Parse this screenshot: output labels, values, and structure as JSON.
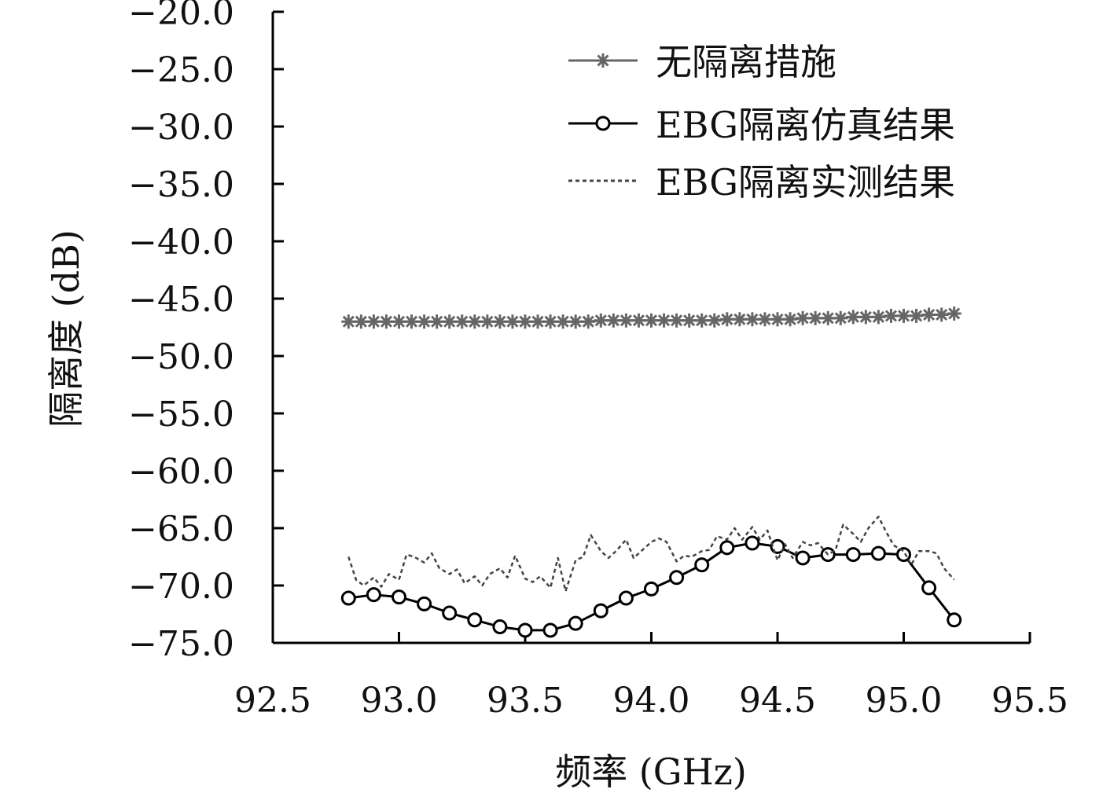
{
  "chart_data": {
    "type": "line",
    "title": "",
    "xlabel": "频率 (GHz)",
    "ylabel": "隔离度 (dB)",
    "xlim": [
      92.5,
      95.5
    ],
    "ylim": [
      -75.0,
      -20.0
    ],
    "x_ticks": [
      "92.5",
      "93.0",
      "93.5",
      "94.0",
      "94.5",
      "95.0",
      "95.5"
    ],
    "y_ticks": [
      "−20.0",
      "−25.0",
      "−30.0",
      "−35.0",
      "−40.0",
      "−45.0",
      "−50.0",
      "−55.0",
      "−60.0",
      "−65.0",
      "−70.0",
      "−75.0"
    ],
    "grid": false,
    "legend_position": "top-right",
    "series": [
      {
        "name": "无隔离措施",
        "style": "solid-star",
        "color": "#666666",
        "x": [
          92.8,
          92.85,
          92.9,
          92.95,
          93.0,
          93.05,
          93.1,
          93.15,
          93.2,
          93.25,
          93.3,
          93.35,
          93.4,
          93.45,
          93.5,
          93.55,
          93.6,
          93.65,
          93.7,
          93.75,
          93.8,
          93.85,
          93.9,
          93.95,
          94.0,
          94.05,
          94.1,
          94.15,
          94.2,
          94.25,
          94.3,
          94.35,
          94.4,
          94.45,
          94.5,
          94.55,
          94.6,
          94.65,
          94.7,
          94.75,
          94.8,
          94.85,
          94.9,
          94.95,
          95.0,
          95.05,
          95.1,
          95.15,
          95.2
        ],
        "y": [
          -47.0,
          -47.0,
          -47.0,
          -47.0,
          -47.0,
          -47.0,
          -47.0,
          -47.0,
          -47.0,
          -47.0,
          -47.0,
          -47.0,
          -47.0,
          -47.0,
          -47.0,
          -47.0,
          -47.0,
          -47.0,
          -47.0,
          -47.0,
          -46.9,
          -46.9,
          -46.9,
          -46.9,
          -46.9,
          -46.9,
          -46.9,
          -46.9,
          -46.9,
          -46.9,
          -46.8,
          -46.8,
          -46.8,
          -46.8,
          -46.8,
          -46.8,
          -46.7,
          -46.7,
          -46.7,
          -46.7,
          -46.6,
          -46.6,
          -46.6,
          -46.5,
          -46.5,
          -46.5,
          -46.4,
          -46.4,
          -46.3
        ]
      },
      {
        "name": "EBG隔离仿真结果",
        "style": "solid-circle",
        "color": "#000000",
        "x": [
          92.8,
          92.9,
          93.0,
          93.1,
          93.2,
          93.3,
          93.4,
          93.5,
          93.6,
          93.7,
          93.8,
          93.9,
          94.0,
          94.1,
          94.2,
          94.3,
          94.4,
          94.5,
          94.6,
          94.7,
          94.8,
          94.9,
          95.0,
          95.1,
          95.2
        ],
        "y": [
          -71.1,
          -70.8,
          -71.0,
          -71.6,
          -72.4,
          -73.0,
          -73.6,
          -73.9,
          -73.9,
          -73.3,
          -72.2,
          -71.1,
          -70.3,
          -69.3,
          -68.2,
          -66.7,
          -66.3,
          -66.6,
          -67.6,
          -67.3,
          -67.3,
          -67.2,
          -67.3,
          -70.2,
          -73.0
        ]
      },
      {
        "name": "EBG隔离实测结果",
        "style": "dashed",
        "color": "#444444",
        "x": [
          92.8,
          92.83,
          92.86,
          92.9,
          92.93,
          92.96,
          93.0,
          93.03,
          93.06,
          93.1,
          93.13,
          93.16,
          93.2,
          93.23,
          93.26,
          93.3,
          93.33,
          93.36,
          93.4,
          93.43,
          93.46,
          93.5,
          93.53,
          93.56,
          93.6,
          93.63,
          93.66,
          93.7,
          93.73,
          93.76,
          93.8,
          93.83,
          93.86,
          93.9,
          93.93,
          93.96,
          94.0,
          94.03,
          94.06,
          94.1,
          94.13,
          94.16,
          94.2,
          94.23,
          94.26,
          94.3,
          94.33,
          94.36,
          94.4,
          94.43,
          94.46,
          94.5,
          94.53,
          94.56,
          94.6,
          94.63,
          94.66,
          94.7,
          94.73,
          94.76,
          94.8,
          94.83,
          94.86,
          94.9,
          94.93,
          94.96,
          95.0,
          95.03,
          95.06,
          95.1,
          95.13,
          95.16,
          95.2
        ],
        "y": [
          -67.5,
          -69.5,
          -70.0,
          -69.3,
          -70.1,
          -69.0,
          -69.5,
          -67.3,
          -67.5,
          -68.0,
          -67.2,
          -68.5,
          -69.0,
          -68.6,
          -69.8,
          -69.2,
          -70.0,
          -69.0,
          -68.5,
          -69.3,
          -67.4,
          -69.4,
          -69.7,
          -69.2,
          -70.2,
          -67.6,
          -70.5,
          -67.8,
          -67.5,
          -65.6,
          -67.0,
          -67.6,
          -67.0,
          -66.0,
          -67.6,
          -67.0,
          -66.2,
          -65.9,
          -66.2,
          -67.9,
          -67.4,
          -67.5,
          -67.0,
          -66.9,
          -65.7,
          -66.0,
          -65.0,
          -66.0,
          -64.9,
          -66.0,
          -65.2,
          -67.8,
          -66.4,
          -67.6,
          -66.2,
          -66.5,
          -66.3,
          -67.3,
          -66.9,
          -64.7,
          -65.5,
          -66.2,
          -65.0,
          -64.0,
          -65.3,
          -66.5,
          -67.0,
          -68.2,
          -67.0,
          -67.0,
          -67.2,
          -68.5,
          -69.5
        ]
      }
    ]
  }
}
